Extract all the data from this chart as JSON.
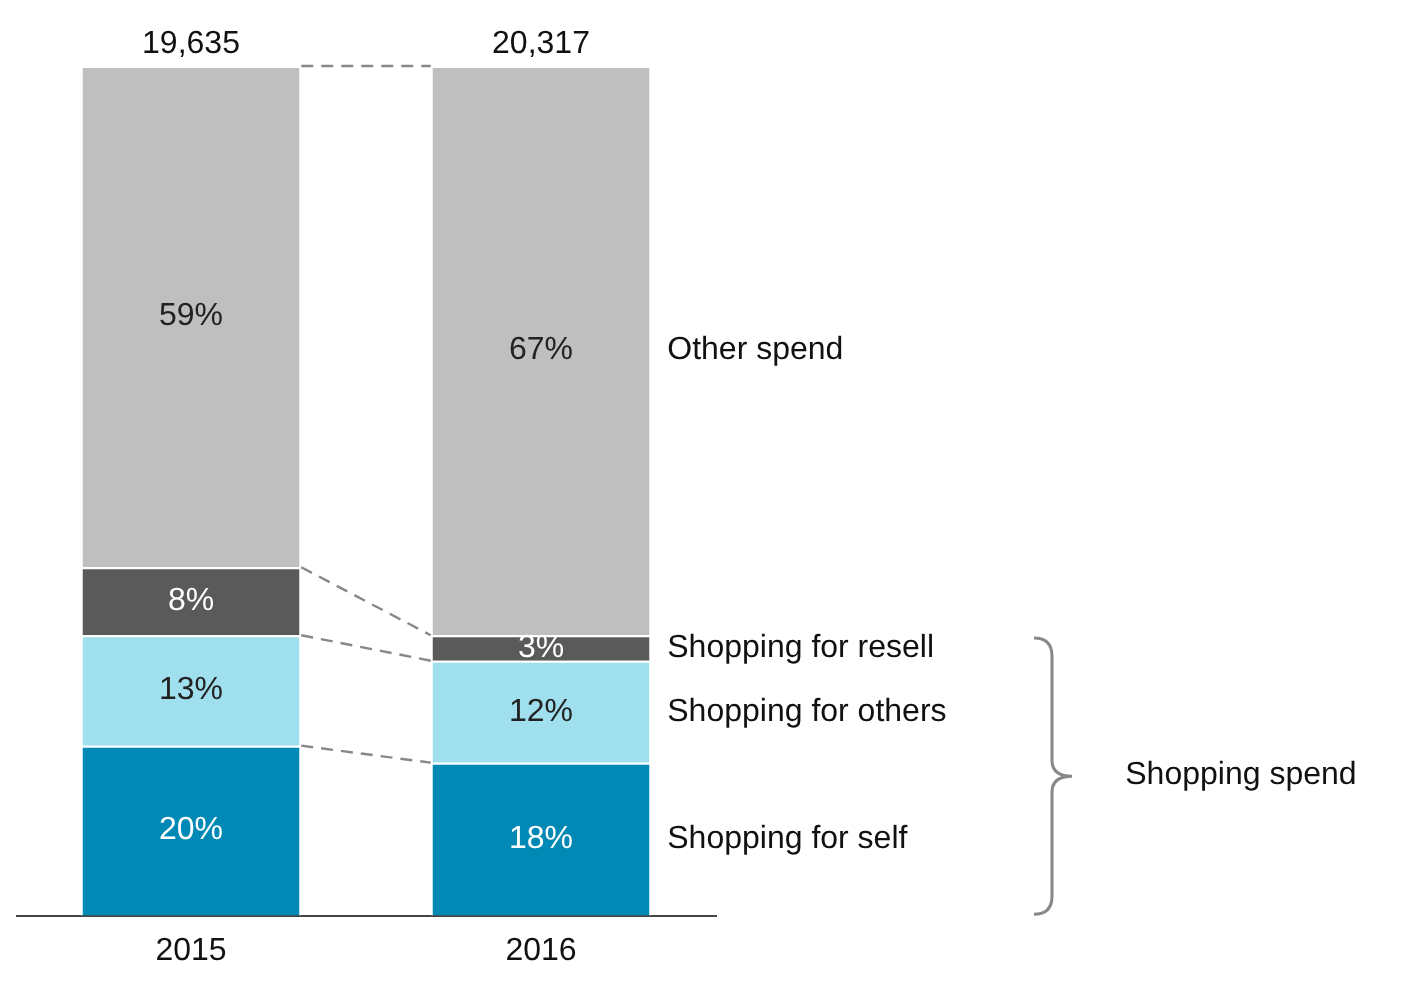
{
  "chart_data": {
    "type": "bar",
    "stacked": true,
    "categories": [
      "2015",
      "2016"
    ],
    "ylim": [
      0,
      100
    ],
    "tick_labels": "x",
    "series": [
      {
        "name": "Shopping for self",
        "color": "#0089b5",
        "values": [
          20,
          18
        ],
        "value_labels": [
          "20%",
          "18%"
        ]
      },
      {
        "name": "Shopping for others",
        "color": "#a0e0ee",
        "values": [
          13,
          12
        ],
        "value_labels": [
          "13%",
          "12%"
        ]
      },
      {
        "name": "Shopping for resell",
        "color": "#5a5a5a",
        "values": [
          8,
          3
        ],
        "value_labels": [
          "8%",
          "3%"
        ]
      },
      {
        "name": "Other spend",
        "color": "#bfbfbf",
        "values": [
          59,
          67
        ],
        "value_labels": [
          "59%",
          "67%"
        ]
      }
    ],
    "annotations": [
      {
        "text": "19,635",
        "x": "2015",
        "y": 100
      },
      {
        "text": "20,317",
        "x": "2016",
        "y": 100
      },
      "Shopping spend"
    ]
  }
}
